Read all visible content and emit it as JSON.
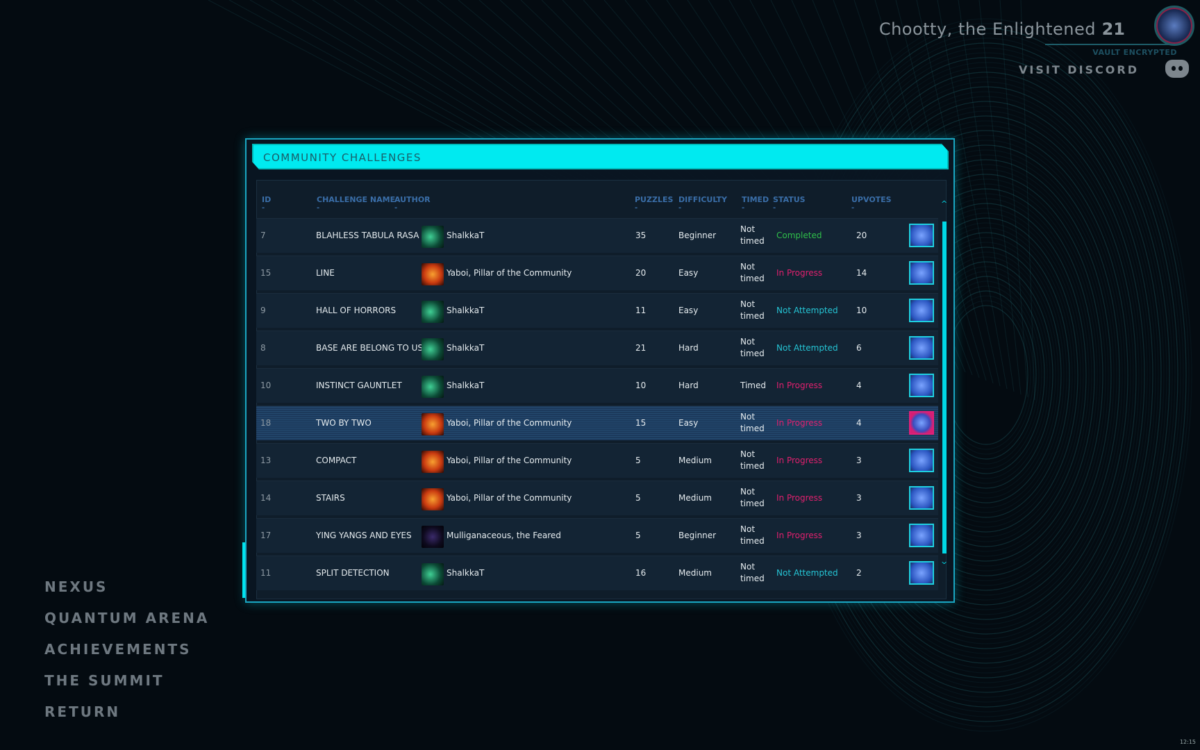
{
  "profile": {
    "name": "Chootty, the Enlightened",
    "level": "21",
    "vault_status": "VAULT ENCRYPTED",
    "discord_label": "VISIT DISCORD"
  },
  "nav": [
    "NEXUS",
    "QUANTUM ARENA",
    "ACHIEVEMENTS",
    "THE SUMMIT",
    "RETURN"
  ],
  "panel": {
    "title": "COMMUNITY CHALLENGES",
    "columns": [
      "ID",
      "CHALLENGE NAME",
      "AUTHOR",
      "PUZZLES",
      "DIFFICULTY",
      "TIMED",
      "STATUS",
      "UPVOTES"
    ],
    "rows": [
      {
        "id": "7",
        "name": "BLAHLESS TABULA RASA",
        "author": "ShalkkaT",
        "puzzles": "35",
        "difficulty": "Beginner",
        "timed": "Not timed",
        "status": "Completed",
        "upvotes": "20"
      },
      {
        "id": "15",
        "name": "LINE",
        "author": "Yaboi, Pillar of the Community",
        "puzzles": "20",
        "difficulty": "Easy",
        "timed": "Not timed",
        "status": "In Progress",
        "upvotes": "14"
      },
      {
        "id": "9",
        "name": "HALL OF HORRORS",
        "author": "ShalkkaT",
        "puzzles": "11",
        "difficulty": "Easy",
        "timed": "Not timed",
        "status": "Not Attempted",
        "upvotes": "10"
      },
      {
        "id": "8",
        "name": "BASE ARE BELONG TO US",
        "author": "ShalkkaT",
        "puzzles": "21",
        "difficulty": "Hard",
        "timed": "Not timed",
        "status": "Not Attempted",
        "upvotes": "6"
      },
      {
        "id": "10",
        "name": "INSTINCT GAUNTLET",
        "author": "ShalkkaT",
        "puzzles": "10",
        "difficulty": "Hard",
        "timed": "Timed",
        "status": "In Progress",
        "upvotes": "4"
      },
      {
        "id": "18",
        "name": "TWO BY TWO",
        "author": "Yaboi, Pillar of the Community",
        "puzzles": "15",
        "difficulty": "Easy",
        "timed": "Not timed",
        "status": "In Progress",
        "upvotes": "4",
        "selected": true
      },
      {
        "id": "13",
        "name": "COMPACT",
        "author": "Yaboi, Pillar of the Community",
        "puzzles": "5",
        "difficulty": "Medium",
        "timed": "Not timed",
        "status": "In Progress",
        "upvotes": "3"
      },
      {
        "id": "14",
        "name": "STAIRS",
        "author": "Yaboi, Pillar of the Community",
        "puzzles": "5",
        "difficulty": "Medium",
        "timed": "Not timed",
        "status": "In Progress",
        "upvotes": "3"
      },
      {
        "id": "17",
        "name": "YING YANGS AND EYES",
        "author": "Mulliganaceous, the Feared",
        "puzzles": "5",
        "difficulty": "Beginner",
        "timed": "Not timed",
        "status": "In Progress",
        "upvotes": "3"
      },
      {
        "id": "11",
        "name": "SPLIT DETECTION",
        "author": "ShalkkaT",
        "puzzles": "16",
        "difficulty": "Medium",
        "timed": "Not timed",
        "status": "Not Attempted",
        "upvotes": "2"
      }
    ]
  },
  "status_colors": {
    "Completed": "#2fbf4a",
    "In Progress": "#e0206e",
    "Not Attempted": "#25c4d4"
  },
  "clock": "12:15"
}
